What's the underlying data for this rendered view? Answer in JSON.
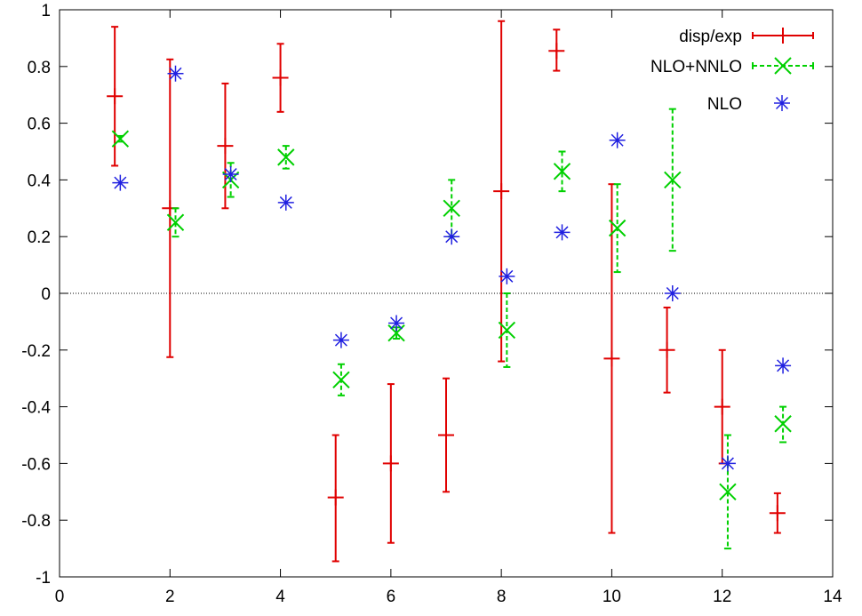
{
  "chart_data": {
    "type": "scatter",
    "title": "",
    "xlabel": "",
    "ylabel": "",
    "xlim": [
      0,
      14
    ],
    "ylim": [
      -1,
      1
    ],
    "xticks": [
      "0",
      "2",
      "4",
      "6",
      "8",
      "10",
      "12",
      "14"
    ],
    "yticks": [
      "-1",
      "-0.8",
      "-0.6",
      "-0.4",
      "-0.2",
      "0",
      "0.2",
      "0.4",
      "0.6",
      "0.8",
      "1"
    ],
    "zero_line": true,
    "grid": false,
    "legend_position": "top-right",
    "series": [
      {
        "name": "disp/exp",
        "color": "#e00000",
        "marker": "plus",
        "line": "solid",
        "points": [
          {
            "x": 1,
            "y": 0.695,
            "lo": 0.45,
            "hi": 0.94
          },
          {
            "x": 2,
            "y": 0.3,
            "lo": -0.225,
            "hi": 0.825
          },
          {
            "x": 3,
            "y": 0.52,
            "lo": 0.3,
            "hi": 0.74
          },
          {
            "x": 4,
            "y": 0.76,
            "lo": 0.64,
            "hi": 0.88
          },
          {
            "x": 5,
            "y": -0.72,
            "lo": -0.945,
            "hi": -0.5
          },
          {
            "x": 6,
            "y": -0.6,
            "lo": -0.88,
            "hi": -0.32
          },
          {
            "x": 7,
            "y": -0.5,
            "lo": -0.7,
            "hi": -0.3
          },
          {
            "x": 8,
            "y": 0.36,
            "lo": -0.24,
            "hi": 0.96
          },
          {
            "x": 9,
            "y": 0.855,
            "lo": 0.785,
            "hi": 0.93
          },
          {
            "x": 10,
            "y": -0.23,
            "lo": -0.845,
            "hi": 0.385
          },
          {
            "x": 11,
            "y": -0.2,
            "lo": -0.35,
            "hi": -0.05
          },
          {
            "x": 12,
            "y": -0.4,
            "lo": -0.6,
            "hi": -0.2
          },
          {
            "x": 13,
            "y": -0.775,
            "lo": -0.845,
            "hi": -0.705
          }
        ]
      },
      {
        "name": "NLO+NNLO",
        "color": "#00d000",
        "marker": "cross",
        "line": "dashed",
        "points": [
          {
            "x": 1.1,
            "y": 0.545,
            "lo": 0.535,
            "hi": 0.555
          },
          {
            "x": 2.1,
            "y": 0.25,
            "lo": 0.2,
            "hi": 0.3
          },
          {
            "x": 3.1,
            "y": 0.4,
            "lo": 0.34,
            "hi": 0.46
          },
          {
            "x": 4.1,
            "y": 0.48,
            "lo": 0.44,
            "hi": 0.52
          },
          {
            "x": 5.1,
            "y": -0.305,
            "lo": -0.36,
            "hi": -0.25
          },
          {
            "x": 6.1,
            "y": -0.14,
            "lo": -0.16,
            "hi": -0.12
          },
          {
            "x": 7.1,
            "y": 0.3,
            "lo": 0.2,
            "hi": 0.4
          },
          {
            "x": 8.1,
            "y": -0.13,
            "lo": -0.26,
            "hi": 0.0
          },
          {
            "x": 9.1,
            "y": 0.43,
            "lo": 0.36,
            "hi": 0.5
          },
          {
            "x": 10.1,
            "y": 0.23,
            "lo": 0.075,
            "hi": 0.385
          },
          {
            "x": 11.1,
            "y": 0.4,
            "lo": 0.15,
            "hi": 0.65
          },
          {
            "x": 12.1,
            "y": -0.7,
            "lo": -0.9,
            "hi": -0.5
          },
          {
            "x": 13.1,
            "y": -0.46,
            "lo": -0.525,
            "hi": -0.4
          }
        ]
      },
      {
        "name": "NLO",
        "color": "#2020e0",
        "marker": "star",
        "line": "none",
        "points": [
          {
            "x": 1.1,
            "y": 0.39
          },
          {
            "x": 2.1,
            "y": 0.775
          },
          {
            "x": 3.1,
            "y": 0.42
          },
          {
            "x": 4.1,
            "y": 0.32
          },
          {
            "x": 5.1,
            "y": -0.165
          },
          {
            "x": 6.1,
            "y": -0.105
          },
          {
            "x": 7.1,
            "y": 0.2
          },
          {
            "x": 8.1,
            "y": 0.06
          },
          {
            "x": 9.1,
            "y": 0.215
          },
          {
            "x": 10.1,
            "y": 0.54
          },
          {
            "x": 11.1,
            "y": 0.0
          },
          {
            "x": 12.1,
            "y": -0.6
          },
          {
            "x": 13.1,
            "y": -0.255
          }
        ]
      }
    ]
  }
}
